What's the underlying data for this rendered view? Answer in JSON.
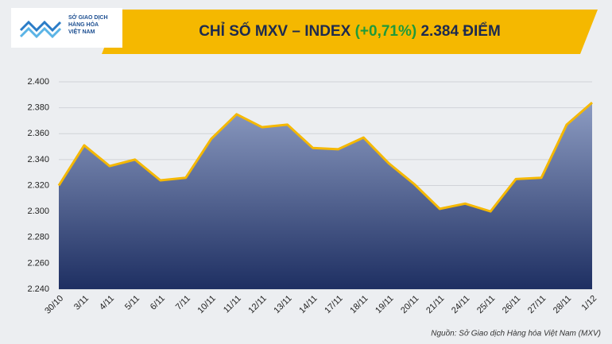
{
  "chart_data": {
    "type": "area",
    "logo_text": [
      "SỞ GIAO DỊCH",
      "HÀNG HÓA",
      "VIỆT NAM"
    ],
    "title": "CHỈ SỐ MXV – INDEX",
    "title_change": "(+0,71%)",
    "title_value": "2.384 ĐIỂM",
    "source": "Nguồn: Sở Giao dịch Hàng hóa Việt Nam (MXV)",
    "categories": [
      "30/10",
      "3/11",
      "4/11",
      "5/11",
      "6/11",
      "7/11",
      "10/11",
      "11/11",
      "12/11",
      "13/11",
      "14/11",
      "17/11",
      "18/11",
      "19/11",
      "20/11",
      "21/11",
      "24/11",
      "25/11",
      "26/11",
      "27/11",
      "28/11",
      "1/12"
    ],
    "series": [
      {
        "name": "MXV-Index",
        "color": "#f5b800",
        "values": [
          2320,
          2351,
          2335,
          2340,
          2324,
          2326,
          2356,
          2375,
          2365,
          2367,
          2349,
          2348,
          2357,
          2337,
          2321,
          2302,
          2306,
          2300,
          2325,
          2326,
          2367,
          2384
        ]
      }
    ],
    "ylim": [
      2240,
      2400
    ],
    "yticks": [
      {
        "value": 2240,
        "label": "2.240"
      },
      {
        "value": 2260,
        "label": "2.260"
      },
      {
        "value": 2280,
        "label": "2.280"
      },
      {
        "value": 2300,
        "label": "2.300"
      },
      {
        "value": 2320,
        "label": "2.320"
      },
      {
        "value": 2340,
        "label": "2.340"
      },
      {
        "value": 2360,
        "label": "2.360"
      },
      {
        "value": 2380,
        "label": "2.380"
      },
      {
        "value": 2400,
        "label": "2.400"
      }
    ],
    "grid": true
  }
}
